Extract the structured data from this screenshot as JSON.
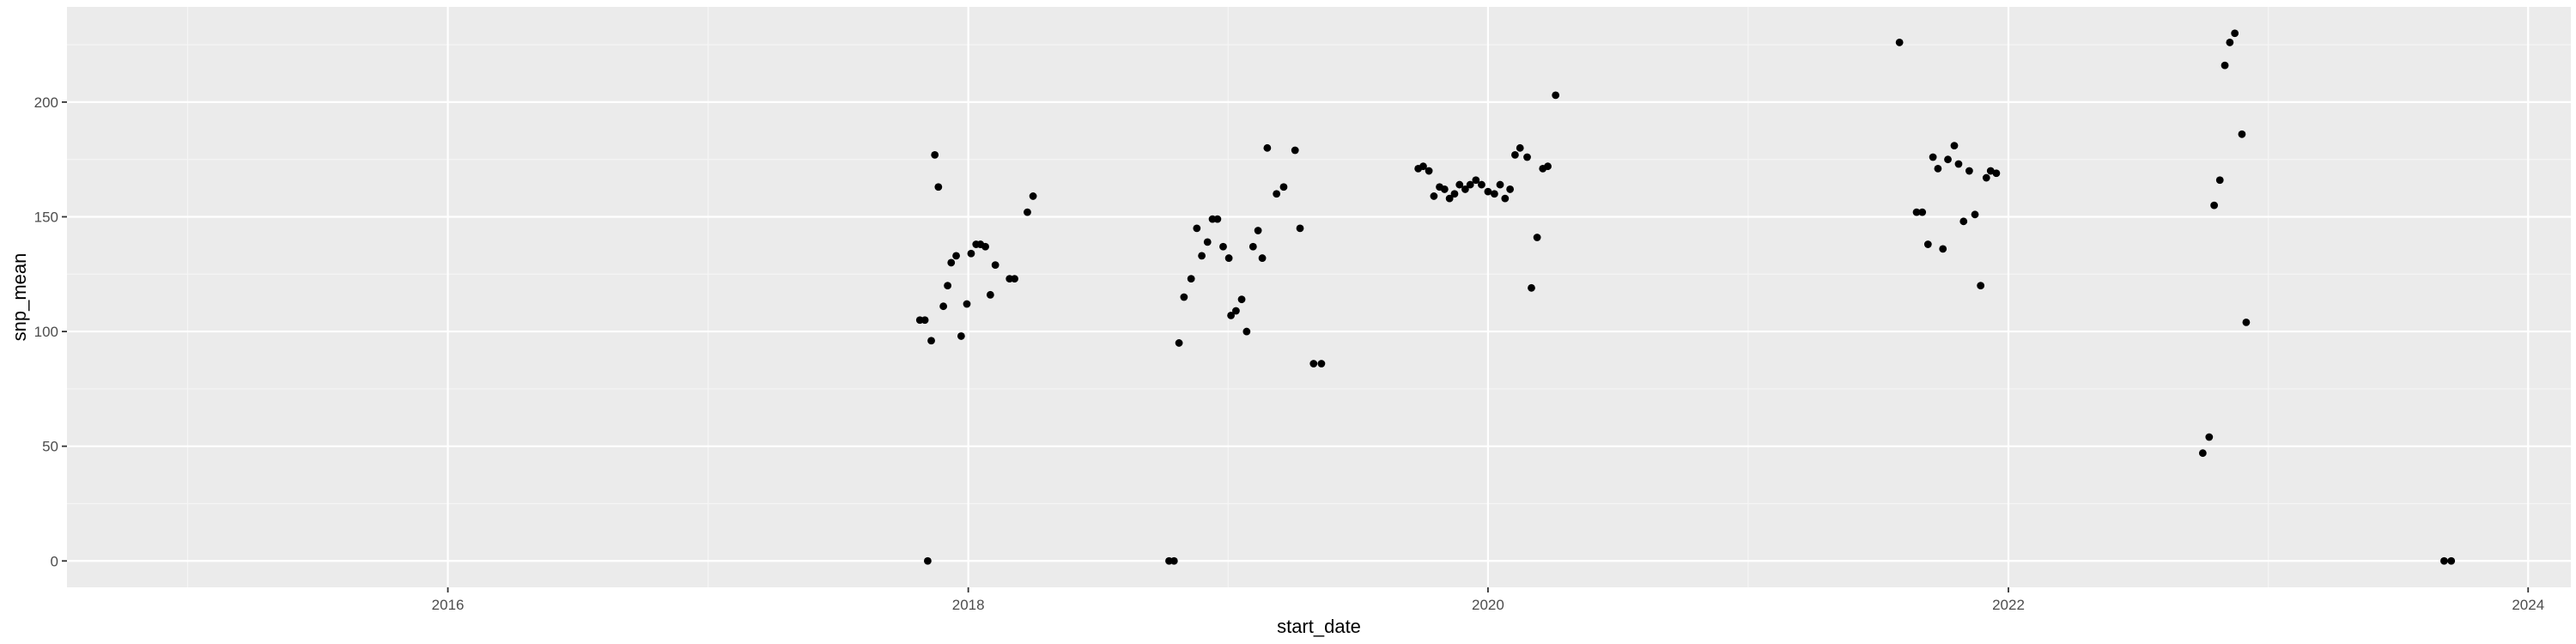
{
  "chart_data": {
    "type": "scatter",
    "title": "",
    "xlabel": "start_date",
    "ylabel": "snp_mean",
    "x_type": "date",
    "xlim": [
      "2014-07-15",
      "2024-03-01"
    ],
    "ylim": [
      -11.5,
      241.5
    ],
    "x_ticks": [
      {
        "date": "2016-01-01",
        "label": "2016"
      },
      {
        "date": "2018-01-01",
        "label": "2018"
      },
      {
        "date": "2020-01-01",
        "label": "2020"
      },
      {
        "date": "2022-01-01",
        "label": "2022"
      },
      {
        "date": "2024-01-01",
        "label": "2024"
      }
    ],
    "y_ticks": [
      0,
      50,
      100,
      150,
      200
    ],
    "grid": true,
    "colors": {
      "panel": "#ebebeb",
      "grid_major": "#ffffff",
      "grid_minor": "#f5f5f5",
      "point": "#000000",
      "tick": "#333333"
    },
    "points": [
      {
        "x": "2017-10-25",
        "y": 105
      },
      {
        "x": "2017-11-01",
        "y": 105
      },
      {
        "x": "2017-11-05",
        "y": 0
      },
      {
        "x": "2017-11-10",
        "y": 96
      },
      {
        "x": "2017-11-15",
        "y": 177
      },
      {
        "x": "2017-11-20",
        "y": 163
      },
      {
        "x": "2017-11-27",
        "y": 111
      },
      {
        "x": "2017-12-03",
        "y": 120
      },
      {
        "x": "2017-12-08",
        "y": 130
      },
      {
        "x": "2017-12-15",
        "y": 133
      },
      {
        "x": "2017-12-22",
        "y": 98
      },
      {
        "x": "2017-12-30",
        "y": 112
      },
      {
        "x": "2018-01-05",
        "y": 134
      },
      {
        "x": "2018-01-12",
        "y": 138
      },
      {
        "x": "2018-01-18",
        "y": 138
      },
      {
        "x": "2018-01-25",
        "y": 137
      },
      {
        "x": "2018-02-01",
        "y": 116
      },
      {
        "x": "2018-02-08",
        "y": 129
      },
      {
        "x": "2018-02-28",
        "y": 123
      },
      {
        "x": "2018-03-07",
        "y": 123
      },
      {
        "x": "2018-03-25",
        "y": 152
      },
      {
        "x": "2018-04-02",
        "y": 159
      },
      {
        "x": "2018-10-10",
        "y": 0
      },
      {
        "x": "2018-10-17",
        "y": 0
      },
      {
        "x": "2018-10-24",
        "y": 95
      },
      {
        "x": "2018-10-31",
        "y": 115
      },
      {
        "x": "2018-11-10",
        "y": 123
      },
      {
        "x": "2018-11-18",
        "y": 145
      },
      {
        "x": "2018-11-25",
        "y": 133
      },
      {
        "x": "2018-12-03",
        "y": 139
      },
      {
        "x": "2018-12-10",
        "y": 149
      },
      {
        "x": "2018-12-17",
        "y": 149
      },
      {
        "x": "2018-12-25",
        "y": 137
      },
      {
        "x": "2019-01-02",
        "y": 132
      },
      {
        "x": "2019-01-05",
        "y": 107
      },
      {
        "x": "2019-01-12",
        "y": 109
      },
      {
        "x": "2019-01-20",
        "y": 114
      },
      {
        "x": "2019-01-27",
        "y": 100
      },
      {
        "x": "2019-02-05",
        "y": 137
      },
      {
        "x": "2019-02-12",
        "y": 144
      },
      {
        "x": "2019-02-18",
        "y": 132
      },
      {
        "x": "2019-02-25",
        "y": 180
      },
      {
        "x": "2019-03-10",
        "y": 160
      },
      {
        "x": "2019-03-20",
        "y": 163
      },
      {
        "x": "2019-04-05",
        "y": 179
      },
      {
        "x": "2019-04-12",
        "y": 145
      },
      {
        "x": "2019-05-01",
        "y": 86
      },
      {
        "x": "2019-05-12",
        "y": 86
      },
      {
        "x": "2019-09-25",
        "y": 171
      },
      {
        "x": "2019-10-02",
        "y": 172
      },
      {
        "x": "2019-10-10",
        "y": 170
      },
      {
        "x": "2019-10-17",
        "y": 159
      },
      {
        "x": "2019-10-25",
        "y": 163
      },
      {
        "x": "2019-11-01",
        "y": 162
      },
      {
        "x": "2019-11-08",
        "y": 158
      },
      {
        "x": "2019-11-15",
        "y": 160
      },
      {
        "x": "2019-11-22",
        "y": 164
      },
      {
        "x": "2019-11-30",
        "y": 162
      },
      {
        "x": "2019-12-07",
        "y": 164
      },
      {
        "x": "2019-12-15",
        "y": 166
      },
      {
        "x": "2019-12-23",
        "y": 164
      },
      {
        "x": "2020-01-01",
        "y": 161
      },
      {
        "x": "2020-01-10",
        "y": 160
      },
      {
        "x": "2020-01-18",
        "y": 164
      },
      {
        "x": "2020-01-25",
        "y": 158
      },
      {
        "x": "2020-02-01",
        "y": 162
      },
      {
        "x": "2020-02-08",
        "y": 177
      },
      {
        "x": "2020-02-15",
        "y": 180
      },
      {
        "x": "2020-02-25",
        "y": 176
      },
      {
        "x": "2020-03-02",
        "y": 119
      },
      {
        "x": "2020-03-10",
        "y": 141
      },
      {
        "x": "2020-03-18",
        "y": 171
      },
      {
        "x": "2020-03-25",
        "y": 172
      },
      {
        "x": "2020-04-05",
        "y": 203
      },
      {
        "x": "2021-08-01",
        "y": 226
      },
      {
        "x": "2021-08-25",
        "y": 152
      },
      {
        "x": "2021-09-02",
        "y": 152
      },
      {
        "x": "2021-09-10",
        "y": 138
      },
      {
        "x": "2021-09-17",
        "y": 176
      },
      {
        "x": "2021-09-24",
        "y": 171
      },
      {
        "x": "2021-10-01",
        "y": 136
      },
      {
        "x": "2021-10-08",
        "y": 175
      },
      {
        "x": "2021-10-17",
        "y": 181
      },
      {
        "x": "2021-10-23",
        "y": 173
      },
      {
        "x": "2021-10-30",
        "y": 148
      },
      {
        "x": "2021-11-07",
        "y": 170
      },
      {
        "x": "2021-11-15",
        "y": 151
      },
      {
        "x": "2021-11-23",
        "y": 120
      },
      {
        "x": "2021-12-01",
        "y": 167
      },
      {
        "x": "2021-12-07",
        "y": 170
      },
      {
        "x": "2021-12-15",
        "y": 169
      },
      {
        "x": "2022-10-01",
        "y": 47
      },
      {
        "x": "2022-10-10",
        "y": 54
      },
      {
        "x": "2022-10-17",
        "y": 155
      },
      {
        "x": "2022-10-25",
        "y": 166
      },
      {
        "x": "2022-11-01",
        "y": 216
      },
      {
        "x": "2022-11-08",
        "y": 226
      },
      {
        "x": "2022-11-15",
        "y": 230
      },
      {
        "x": "2022-11-25",
        "y": 186
      },
      {
        "x": "2022-12-01",
        "y": 104
      },
      {
        "x": "2023-09-05",
        "y": 0
      },
      {
        "x": "2023-09-15",
        "y": 0
      }
    ]
  }
}
